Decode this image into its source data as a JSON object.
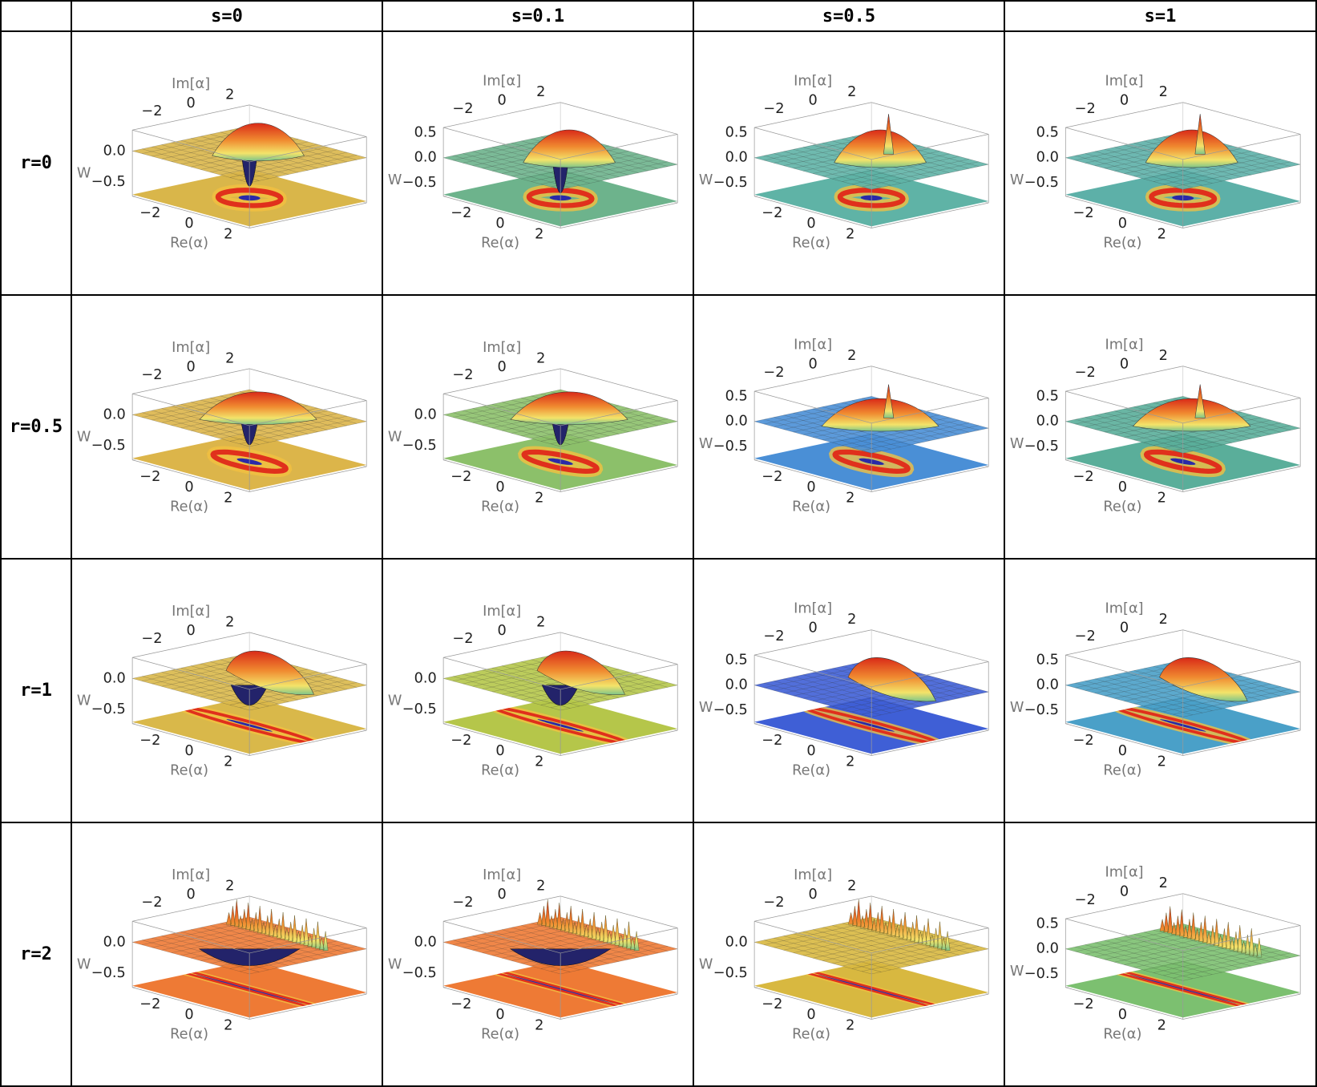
{
  "table": {
    "columns": [
      "s=0",
      "s=0.1",
      "s=0.5",
      "s=1"
    ],
    "rows": [
      {
        "label": "r=0",
        "cells": [
          {
            "color": "#d9b64a",
            "w_ticks": [
              {
                "value": -0.5,
                "label": "−0.5"
              },
              {
                "value": 0,
                "label": "0.0"
              }
            ]
          },
          {
            "color": "#6db38c",
            "w_ticks": [
              {
                "value": -0.5,
                "label": "−0.5"
              },
              {
                "value": 0,
                "label": "0.0"
              },
              {
                "value": 0.5,
                "label": "0.5"
              }
            ]
          },
          {
            "color": "#5fb3a6",
            "w_ticks": [
              {
                "value": -0.5,
                "label": "−0.5"
              },
              {
                "value": 0,
                "label": "0.0"
              },
              {
                "value": 0.5,
                "label": "0.5"
              }
            ]
          },
          {
            "color": "#5db0a8",
            "w_ticks": [
              {
                "value": -0.5,
                "label": "−0.5"
              },
              {
                "value": 0,
                "label": "0.0"
              },
              {
                "value": 0.5,
                "label": "0.5"
              }
            ]
          }
        ]
      },
      {
        "label": "r=0.5",
        "cells": [
          {
            "color": "#dcb54a",
            "w_ticks": [
              {
                "value": -0.5,
                "label": "−0.5"
              },
              {
                "value": 0,
                "label": "0.0"
              }
            ]
          },
          {
            "color": "#8cc06a",
            "w_ticks": [
              {
                "value": -0.5,
                "label": "−0.5"
              },
              {
                "value": 0,
                "label": "0.0"
              }
            ]
          },
          {
            "color": "#4a8fd6",
            "w_ticks": [
              {
                "value": -0.5,
                "label": "−0.5"
              },
              {
                "value": 0,
                "label": "0.0"
              },
              {
                "value": 0.5,
                "label": "0.5"
              }
            ]
          },
          {
            "color": "#5aae9a",
            "w_ticks": [
              {
                "value": -0.5,
                "label": "−0.5"
              },
              {
                "value": 0,
                "label": "0.0"
              },
              {
                "value": 0.5,
                "label": "0.5"
              }
            ]
          }
        ]
      },
      {
        "label": "r=1",
        "cells": [
          {
            "color": "#d9b84a",
            "w_ticks": [
              {
                "value": -0.5,
                "label": "−0.5"
              },
              {
                "value": 0,
                "label": "0.0"
              }
            ]
          },
          {
            "color": "#b5c64a",
            "w_ticks": [
              {
                "value": -0.5,
                "label": "−0.5"
              },
              {
                "value": 0,
                "label": "0.0"
              }
            ]
          },
          {
            "color": "#3f5fd6",
            "w_ticks": [
              {
                "value": -0.5,
                "label": "−0.5"
              },
              {
                "value": 0,
                "label": "0.0"
              },
              {
                "value": 0.5,
                "label": "0.5"
              }
            ]
          },
          {
            "color": "#4aa0c8",
            "w_ticks": [
              {
                "value": -0.5,
                "label": "−0.5"
              },
              {
                "value": 0,
                "label": "0.0"
              },
              {
                "value": 0.5,
                "label": "0.5"
              }
            ]
          }
        ]
      },
      {
        "label": "r=2",
        "cells": [
          {
            "color": "#ee7a35",
            "w_ticks": [
              {
                "value": -0.5,
                "label": "−0.5"
              },
              {
                "value": 0,
                "label": "0.0"
              }
            ]
          },
          {
            "color": "#ee7a35",
            "w_ticks": [
              {
                "value": -0.5,
                "label": "−0.5"
              },
              {
                "value": 0,
                "label": "0.0"
              }
            ]
          },
          {
            "color": "#d8b840",
            "w_ticks": [
              {
                "value": -0.5,
                "label": "−0.5"
              },
              {
                "value": 0,
                "label": "0.0"
              }
            ]
          },
          {
            "color": "#7cc070",
            "w_ticks": [
              {
                "value": -0.5,
                "label": "−0.5"
              },
              {
                "value": 0,
                "label": "0.0"
              },
              {
                "value": 0.5,
                "label": "0.5"
              }
            ]
          }
        ]
      }
    ]
  },
  "axes": {
    "im_label": "Im[α]",
    "re_label": "Re(α)",
    "w_label": "W",
    "im_ticks": [
      {
        "value": -2,
        "label": "−2"
      },
      {
        "value": 0,
        "label": "0"
      },
      {
        "value": 2,
        "label": "2"
      }
    ],
    "re_ticks": [
      {
        "value": -2,
        "label": "−2"
      },
      {
        "value": 0,
        "label": "0"
      },
      {
        "value": 2,
        "label": "2"
      }
    ]
  }
}
